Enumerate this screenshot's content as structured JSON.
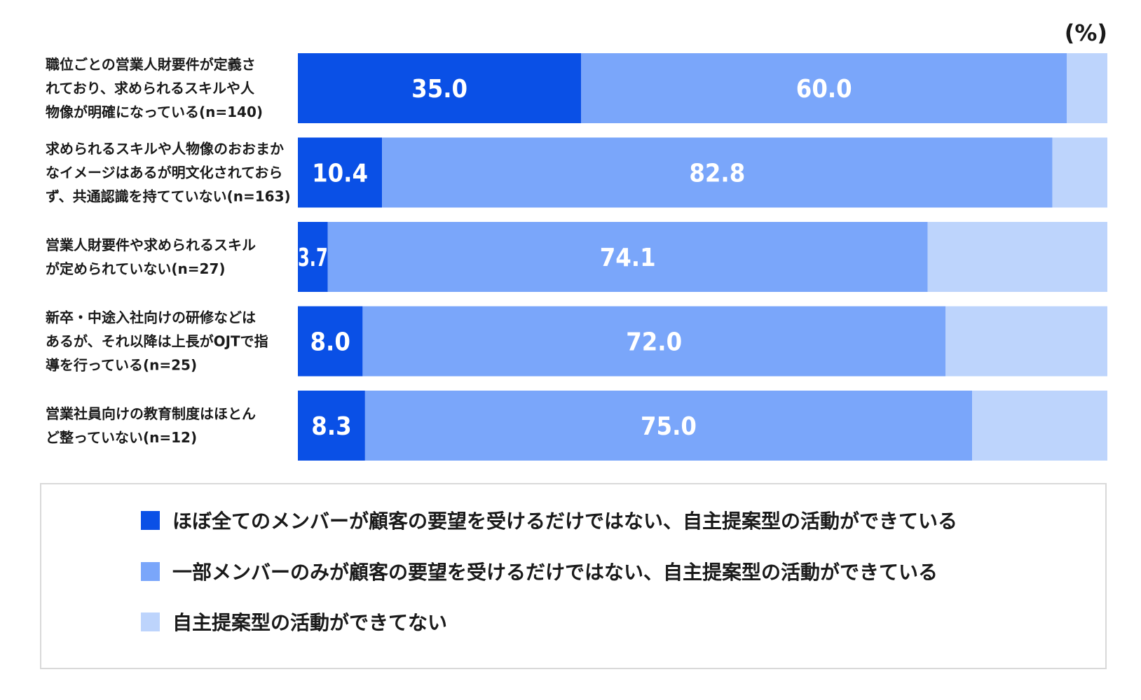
{
  "chart_data": {
    "type": "bar",
    "orientation": "horizontal",
    "stacked": true,
    "unit": "(%)",
    "categories": [
      [
        "職位ごとの営業人財要件が定義さ",
        "れており、求められるスキルや人",
        "物像が明確になっている(n=140)"
      ],
      [
        "求められるスキルや人物像のおおまか",
        "なイメージはあるが明文化されておら",
        "ず、共通認識を持てていない(n=163)"
      ],
      [
        "営業人財要件や求められるスキル",
        "が定められていない(n=27)"
      ],
      [
        "新卒・中途入社向けの研修などは",
        "あるが、それ以降は上長がOJTで指",
        "導を行っている(n=25)"
      ],
      [
        "営業社員向けの教育制度はほとん",
        "ど整っていない(n=12)"
      ]
    ],
    "series": [
      {
        "name": "ほぼ全てのメンバーが顧客の要望を受けるだけではない、自主提案型の活動ができている",
        "color": "#0A50E6",
        "values": [
          35.0,
          10.4,
          3.7,
          8.0,
          8.3
        ],
        "labels": [
          "35.0",
          "10.4",
          "3.7",
          "8.0",
          "8.3"
        ]
      },
      {
        "name": "一部メンバーのみが顧客の要望を受けるだけではない、自主提案型の活動ができている",
        "color": "#7AA6FA",
        "values": [
          60.0,
          82.8,
          74.1,
          72.0,
          75.0
        ],
        "labels": [
          "60.0",
          "82.8",
          "74.1",
          "72.0",
          "75.0"
        ]
      },
      {
        "name": "自主提案型の活動ができてない",
        "color": "#BDD4FC",
        "values": [
          5.0,
          6.8,
          22.2,
          20.0,
          16.7
        ],
        "labels": [
          "",
          "",
          "",
          "",
          ""
        ]
      }
    ],
    "xlim": [
      0,
      100
    ],
    "grid": false,
    "legend_position": "bottom"
  }
}
